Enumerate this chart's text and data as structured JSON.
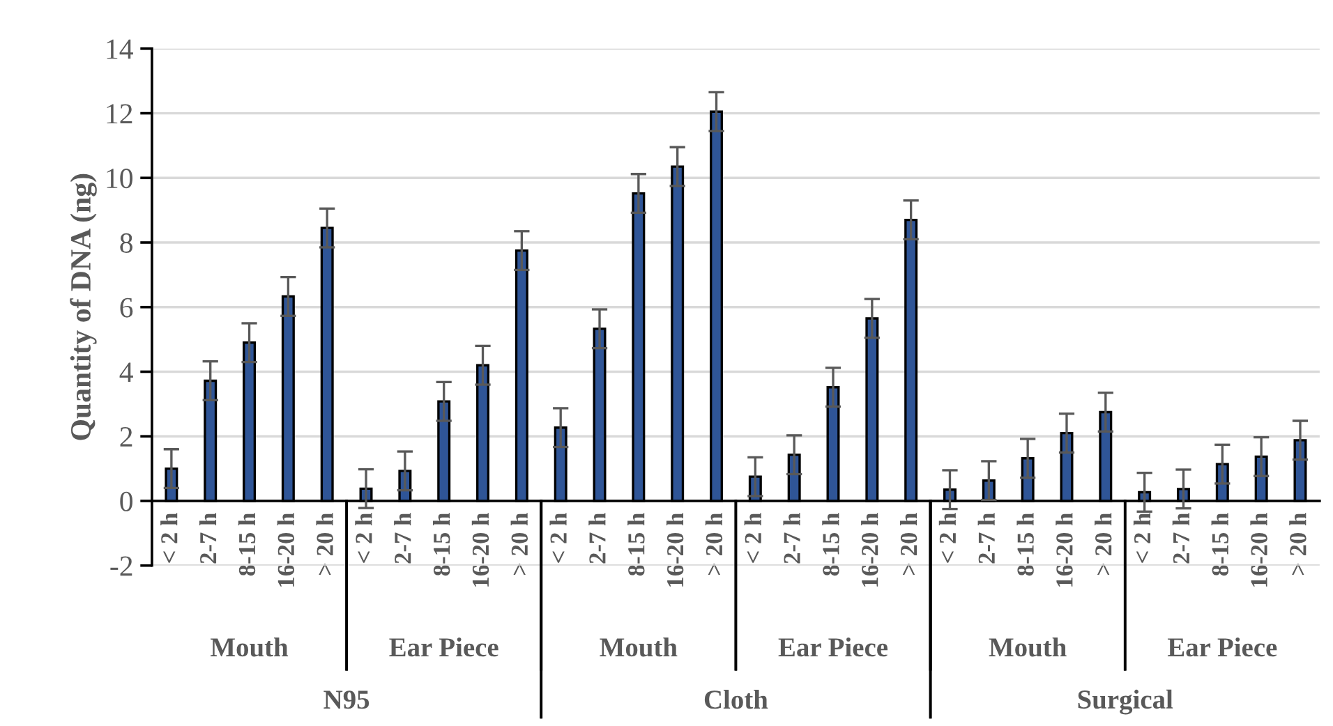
{
  "chart_data": {
    "type": "bar",
    "ylabel": "Quantity of DNA (ng)",
    "categories": [
      "< 2 h",
      "2-7 h",
      "8-15 h",
      "16-20 h",
      "> 20 h",
      "< 2 h",
      "2-7 h",
      "8-15 h",
      "16-20 h",
      "> 20 h",
      "< 2 h",
      "2-7 h",
      "8-15 h",
      "16-20 h",
      "> 20 h",
      "< 2 h",
      "2-7 h",
      "8-15 h",
      "16-20 h",
      "> 20 h",
      "< 2 h",
      "2-7 h",
      "8-15 h",
      "16-20 h",
      "> 20 h",
      "< 2 h",
      "2-7 h",
      "8-15 h",
      "16-20 h",
      "> 20 h"
    ],
    "values": [
      1.0,
      3.72,
      4.9,
      6.33,
      8.45,
      0.38,
      0.93,
      3.08,
      4.2,
      7.75,
      2.27,
      5.33,
      9.52,
      10.35,
      12.05,
      0.75,
      1.43,
      3.52,
      5.65,
      8.7,
      0.35,
      0.63,
      1.32,
      2.1,
      2.75,
      0.27,
      0.37,
      1.14,
      1.37,
      1.88
    ],
    "errors": [
      0.6,
      0.6,
      0.6,
      0.6,
      0.6,
      0.6,
      0.6,
      0.6,
      0.6,
      0.6,
      0.6,
      0.6,
      0.6,
      0.6,
      0.6,
      0.6,
      0.6,
      0.6,
      0.6,
      0.6,
      0.6,
      0.6,
      0.6,
      0.6,
      0.6,
      0.6,
      0.6,
      0.6,
      0.6,
      0.6
    ],
    "color": "#2f5597",
    "annotations": [
      "Mouth",
      "Ear Piece",
      "Mouth",
      "Ear Piece",
      "Mouth",
      "Ear Piece",
      "N95",
      "Cloth",
      "Surgical"
    ],
    "ylim": [
      -2,
      14
    ],
    "yticks": [
      -2,
      0,
      2,
      4,
      6,
      8,
      10,
      12,
      14
    ],
    "grid": "y"
  }
}
